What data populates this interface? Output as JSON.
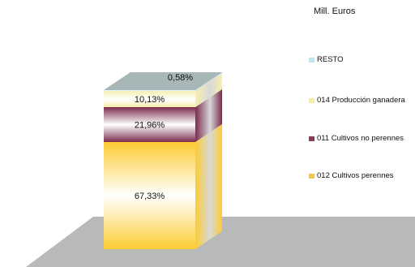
{
  "unit_label": "Mill. Euros",
  "colors": {
    "top_face": "#a7b7b7",
    "side_face": "#b0b0b0",
    "floor": "#b9b9b9"
  },
  "chart_data": {
    "type": "bar",
    "stacked": true,
    "percent": true,
    "three_d": true,
    "title": "",
    "xlabel": "",
    "ylabel": "",
    "ylim": [
      0,
      100
    ],
    "legend_position": "right",
    "series": [
      {
        "name": "012 Cultivos perennes",
        "value": 67.33,
        "label": "67,33%",
        "color": "#fccc33",
        "swatch": "#f5c542"
      },
      {
        "name": "011 Cultivos no perennes",
        "value": 21.96,
        "label": "21,96%",
        "color": "#7a2b4e",
        "swatch": "#8b3a5a"
      },
      {
        "name": "014 Producción ganadera",
        "value": 10.13,
        "label": "10,13%",
        "color": "#f7efae",
        "swatch": "#f6eea0"
      },
      {
        "name": "RESTO",
        "value": 0.58,
        "label": "0,58%",
        "color": "#b6e6ef",
        "swatch": "#b9e9f2"
      }
    ]
  }
}
